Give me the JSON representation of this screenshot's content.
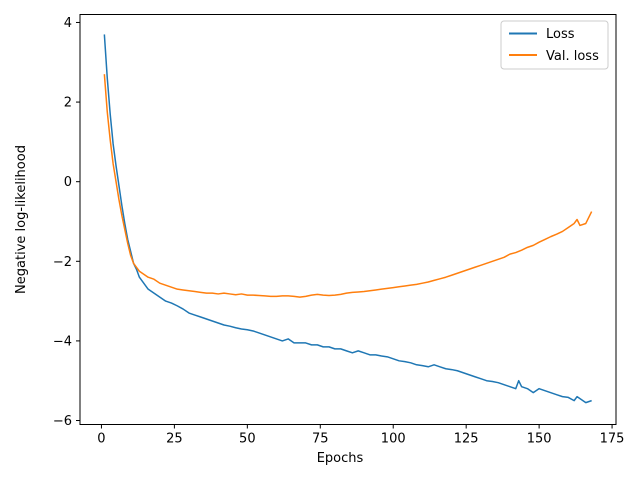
{
  "chart_data": {
    "type": "line",
    "title": "",
    "xlabel": "Epochs",
    "ylabel": "Negative log-likelihood",
    "xlim": [
      -7.35,
      176.35
    ],
    "ylim": [
      -6.1,
      4.2
    ],
    "xticks": [
      0,
      25,
      50,
      75,
      100,
      125,
      150,
      175
    ],
    "yticks": [
      -6,
      -4,
      -2,
      0,
      2,
      4
    ],
    "xtick_labels": [
      "0",
      "25",
      "50",
      "75",
      "100",
      "125",
      "150",
      "175"
    ],
    "ytick_labels": [
      "−6",
      "−4",
      "−2",
      "0",
      "2",
      "4"
    ],
    "grid": false,
    "legend_position": "top-right",
    "series": [
      {
        "name": "Loss",
        "color": "#1f77b4",
        "x": [
          1,
          2,
          3,
          4,
          5,
          6,
          7,
          8,
          9,
          10,
          11,
          12,
          13,
          14,
          15,
          16,
          18,
          20,
          22,
          24,
          26,
          28,
          30,
          32,
          34,
          36,
          38,
          40,
          42,
          44,
          46,
          48,
          50,
          52,
          54,
          56,
          58,
          60,
          62,
          64,
          66,
          68,
          70,
          72,
          74,
          76,
          78,
          80,
          82,
          84,
          86,
          88,
          90,
          92,
          94,
          96,
          98,
          100,
          102,
          104,
          106,
          108,
          110,
          112,
          114,
          116,
          118,
          120,
          122,
          124,
          126,
          128,
          130,
          132,
          134,
          136,
          138,
          140,
          142,
          143,
          144,
          146,
          148,
          150,
          152,
          154,
          156,
          158,
          160,
          162,
          163,
          164,
          166,
          168
        ],
        "y": [
          3.7,
          2.6,
          1.7,
          0.95,
          0.4,
          -0.1,
          -0.6,
          -1.05,
          -1.45,
          -1.75,
          -2.05,
          -2.2,
          -2.4,
          -2.5,
          -2.6,
          -2.7,
          -2.8,
          -2.9,
          -3.0,
          -3.05,
          -3.12,
          -3.2,
          -3.3,
          -3.35,
          -3.4,
          -3.45,
          -3.5,
          -3.55,
          -3.6,
          -3.63,
          -3.67,
          -3.7,
          -3.72,
          -3.75,
          -3.8,
          -3.85,
          -3.9,
          -3.95,
          -4.0,
          -3.95,
          -4.05,
          -4.05,
          -4.05,
          -4.1,
          -4.1,
          -4.15,
          -4.15,
          -4.2,
          -4.2,
          -4.25,
          -4.3,
          -4.25,
          -4.3,
          -4.35,
          -4.35,
          -4.38,
          -4.4,
          -4.45,
          -4.5,
          -4.52,
          -4.55,
          -4.6,
          -4.62,
          -4.65,
          -4.6,
          -4.65,
          -4.7,
          -4.72,
          -4.75,
          -4.8,
          -4.85,
          -4.9,
          -4.95,
          -5.0,
          -5.02,
          -5.05,
          -5.1,
          -5.15,
          -5.2,
          -5.0,
          -5.15,
          -5.2,
          -5.3,
          -5.2,
          -5.25,
          -5.3,
          -5.35,
          -5.4,
          -5.42,
          -5.5,
          -5.4,
          -5.45,
          -5.55,
          -5.5
        ]
      },
      {
        "name": "Val. loss",
        "color": "#ff7f0e",
        "x": [
          1,
          2,
          3,
          4,
          5,
          6,
          7,
          8,
          9,
          10,
          11,
          12,
          13,
          14,
          15,
          16,
          18,
          20,
          22,
          24,
          26,
          28,
          30,
          32,
          34,
          36,
          38,
          40,
          42,
          44,
          46,
          48,
          50,
          52,
          54,
          56,
          58,
          60,
          62,
          64,
          66,
          68,
          70,
          72,
          74,
          76,
          78,
          80,
          82,
          84,
          86,
          88,
          90,
          92,
          94,
          96,
          98,
          100,
          102,
          104,
          106,
          108,
          110,
          112,
          114,
          116,
          118,
          120,
          122,
          124,
          126,
          128,
          130,
          132,
          134,
          136,
          138,
          140,
          142,
          144,
          146,
          148,
          150,
          152,
          154,
          156,
          158,
          160,
          162,
          163,
          164,
          166,
          168
        ],
        "y": [
          2.7,
          1.75,
          1.05,
          0.45,
          0.0,
          -0.45,
          -0.85,
          -1.2,
          -1.55,
          -1.85,
          -2.05,
          -2.15,
          -2.25,
          -2.3,
          -2.35,
          -2.4,
          -2.45,
          -2.55,
          -2.6,
          -2.65,
          -2.7,
          -2.72,
          -2.74,
          -2.76,
          -2.78,
          -2.8,
          -2.8,
          -2.82,
          -2.8,
          -2.82,
          -2.84,
          -2.82,
          -2.85,
          -2.85,
          -2.86,
          -2.87,
          -2.88,
          -2.88,
          -2.87,
          -2.87,
          -2.88,
          -2.9,
          -2.88,
          -2.85,
          -2.83,
          -2.85,
          -2.86,
          -2.85,
          -2.83,
          -2.8,
          -2.78,
          -2.77,
          -2.76,
          -2.74,
          -2.72,
          -2.7,
          -2.68,
          -2.66,
          -2.64,
          -2.62,
          -2.6,
          -2.58,
          -2.55,
          -2.52,
          -2.48,
          -2.44,
          -2.4,
          -2.35,
          -2.3,
          -2.25,
          -2.2,
          -2.15,
          -2.1,
          -2.05,
          -2.0,
          -1.95,
          -1.9,
          -1.82,
          -1.78,
          -1.72,
          -1.65,
          -1.6,
          -1.52,
          -1.45,
          -1.38,
          -1.32,
          -1.25,
          -1.15,
          -1.05,
          -0.95,
          -1.1,
          -1.05,
          -0.75
        ]
      }
    ]
  }
}
